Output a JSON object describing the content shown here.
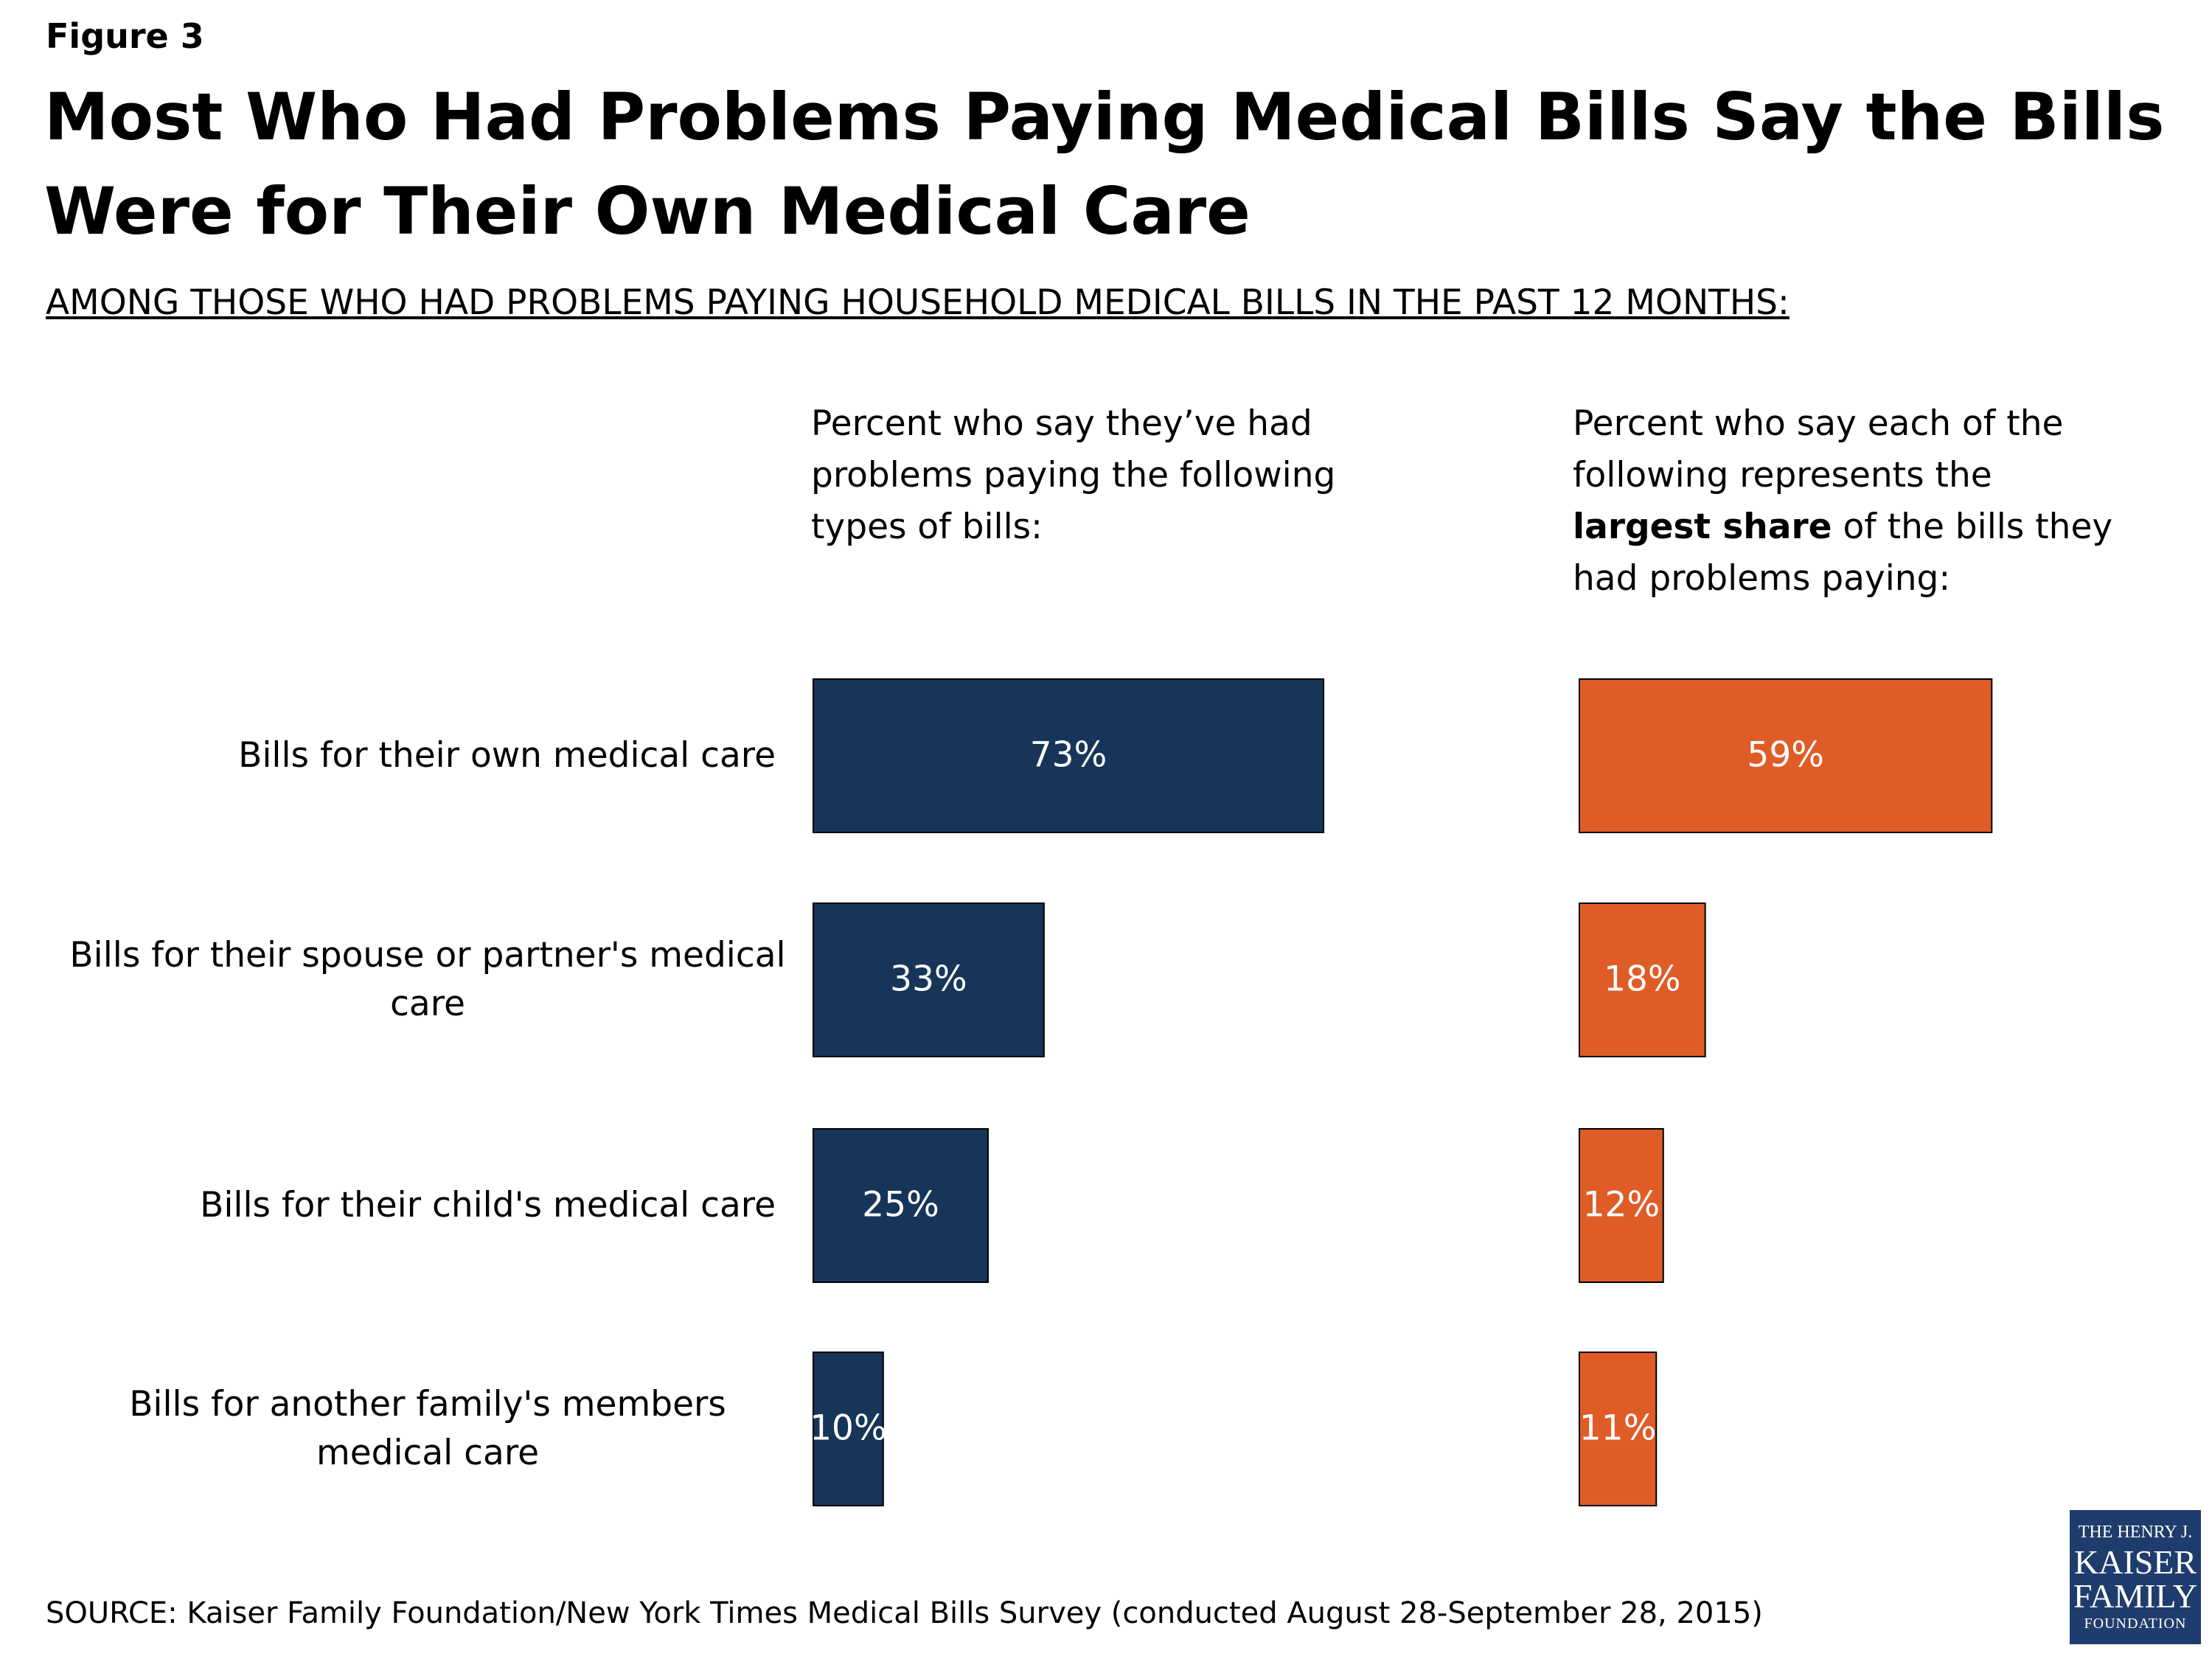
{
  "figure_label": "Figure 3",
  "title": "Most Who Had Problems Paying Medical Bills Say the Bills Were for Their Own Medical Care",
  "subtitle": "AMONG THOSE WHO HAD PROBLEMS PAYING HOUSEHOLD MEDICAL BILLS IN THE PAST 12 MONTHS:",
  "source": "SOURCE: Kaiser Family Foundation/New York Times Medical Bills Survey (conducted August 28-September 28, 2015)",
  "logo": [
    "THE HENRY J.",
    "KAISER",
    "FAMILY",
    "FOUNDATION"
  ],
  "chart_data": {
    "type": "bar",
    "orientation": "horizontal",
    "categories": [
      "Bills for their own medical care",
      "Bills for their spouse or partner's medical care",
      "Bills for their child's medical care",
      "Bills for another family's members medical care"
    ],
    "xlim": [
      0,
      100
    ],
    "series": [
      {
        "heading": [
          {
            "text": "Percent who say they’ve had problems paying the following types of bills:",
            "bold": false
          }
        ],
        "color": "#173559",
        "values": [
          73,
          33,
          25,
          10
        ],
        "value_labels": [
          "73%",
          "33%",
          "25%",
          "10%"
        ]
      },
      {
        "heading": [
          {
            "text": "Percent who say each of the following represents the ",
            "bold": false
          },
          {
            "text": "largest share",
            "bold": true
          },
          {
            "text": " of the bills they had problems paying:",
            "bold": false
          }
        ],
        "color": "#e05c27",
        "values": [
          59,
          18,
          12,
          11
        ],
        "value_labels": [
          "59%",
          "18%",
          "12%",
          "11%"
        ]
      }
    ]
  }
}
